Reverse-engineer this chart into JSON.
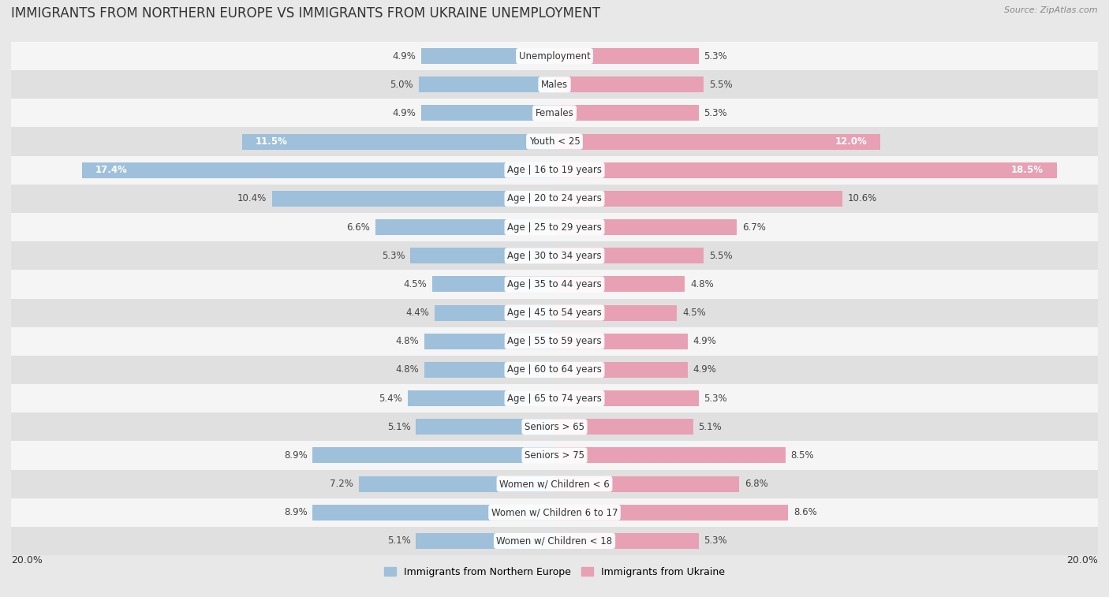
{
  "title": "IMMIGRANTS FROM NORTHERN EUROPE VS IMMIGRANTS FROM UKRAINE UNEMPLOYMENT",
  "source": "Source: ZipAtlas.com",
  "categories": [
    "Unemployment",
    "Males",
    "Females",
    "Youth < 25",
    "Age | 16 to 19 years",
    "Age | 20 to 24 years",
    "Age | 25 to 29 years",
    "Age | 30 to 34 years",
    "Age | 35 to 44 years",
    "Age | 45 to 54 years",
    "Age | 55 to 59 years",
    "Age | 60 to 64 years",
    "Age | 65 to 74 years",
    "Seniors > 65",
    "Seniors > 75",
    "Women w/ Children < 6",
    "Women w/ Children 6 to 17",
    "Women w/ Children < 18"
  ],
  "left_values": [
    4.9,
    5.0,
    4.9,
    11.5,
    17.4,
    10.4,
    6.6,
    5.3,
    4.5,
    4.4,
    4.8,
    4.8,
    5.4,
    5.1,
    8.9,
    7.2,
    8.9,
    5.1
  ],
  "right_values": [
    5.3,
    5.5,
    5.3,
    12.0,
    18.5,
    10.6,
    6.7,
    5.5,
    4.8,
    4.5,
    4.9,
    4.9,
    5.3,
    5.1,
    8.5,
    6.8,
    8.6,
    5.3
  ],
  "left_color": "#9ec0da",
  "right_color": "#e8a0b4",
  "left_label": "Immigrants from Northern Europe",
  "right_label": "Immigrants from Ukraine",
  "max_val": 20.0,
  "bg_color": "#e8e8e8",
  "row_colors_even": "#f5f5f5",
  "row_colors_odd": "#e0e0e0",
  "title_fontsize": 12,
  "label_fontsize": 8.5,
  "value_fontsize": 8.5,
  "bar_height": 0.55
}
